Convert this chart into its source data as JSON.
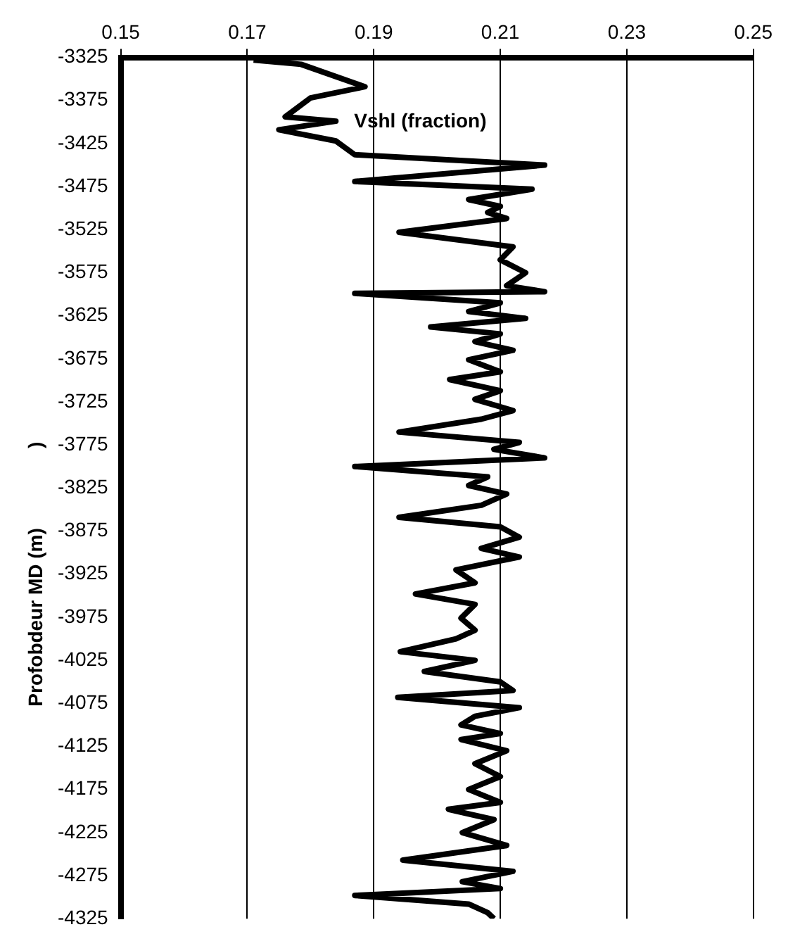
{
  "chart_data": {
    "type": "line",
    "title": "Vshl (fraction)",
    "ylabel": "Profobdeur MD (m)",
    "annotations": [
      ")"
    ],
    "xlim": [
      0.15,
      0.25
    ],
    "xticks": [
      0.15,
      0.17,
      0.19,
      0.21,
      0.23,
      0.25
    ],
    "ylim": [
      -4325,
      -3325
    ],
    "yticks": [
      -3325,
      -3375,
      -3425,
      -3475,
      -3525,
      -3575,
      -3625,
      -3675,
      -3725,
      -3775,
      -3825,
      -3875,
      -3925,
      -3975,
      -4025,
      -4075,
      -4125,
      -4175,
      -4225,
      -4275,
      -4325
    ],
    "grid": "x",
    "legend": false,
    "marker": "none",
    "line_style": "solid",
    "series": [
      {
        "color": "#000000",
        "x": [
          0.171,
          0.1785,
          0.1886,
          0.18,
          0.176,
          0.184,
          0.175,
          0.184,
          0.187,
          0.217,
          0.187,
          0.215,
          0.205,
          0.21,
          0.208,
          0.211,
          0.194,
          0.212,
          0.21,
          0.214,
          0.211,
          0.217,
          0.187,
          0.21,
          0.205,
          0.214,
          0.199,
          0.21,
          0.206,
          0.212,
          0.205,
          0.21,
          0.202,
          0.21,
          0.206,
          0.212,
          0.207,
          0.194,
          0.213,
          0.209,
          0.217,
          0.187,
          0.208,
          0.205,
          0.211,
          0.207,
          0.194,
          0.21,
          0.213,
          0.207,
          0.213,
          0.203,
          0.206,
          0.1966,
          0.206,
          0.2038,
          0.206,
          0.203,
          0.1942,
          0.206,
          0.198,
          0.21,
          0.212,
          0.1938,
          0.213,
          0.206,
          0.2038,
          0.21,
          0.2038,
          0.211,
          0.206,
          0.21,
          0.205,
          0.21,
          0.2018,
          0.209,
          0.204,
          0.211,
          0.1946,
          0.212,
          0.204,
          0.21,
          0.187,
          0.205,
          0.208,
          0.209
        ],
        "values": [
          -3328,
          -3333,
          -3359,
          -3372,
          -3394,
          -3399,
          -3409,
          -3422,
          -3438,
          -3450,
          -3469,
          -3478,
          -3490,
          -3498,
          -3505,
          -3512,
          -3528,
          -3545,
          -3560,
          -3575,
          -3590,
          -3597,
          -3599,
          -3610,
          -3620,
          -3628,
          -3638,
          -3646,
          -3655,
          -3665,
          -3676,
          -3690,
          -3699,
          -3712,
          -3722,
          -3735,
          -3745,
          -3760,
          -3772,
          -3780,
          -3790,
          -3800,
          -3812,
          -3822,
          -3832,
          -3845,
          -3859,
          -3870,
          -3882,
          -3895,
          -3905,
          -3920,
          -3935,
          -3948,
          -3960,
          -3976,
          -3990,
          -4000,
          -4015,
          -4025,
          -4038,
          -4050,
          -4060,
          -4068,
          -4080,
          -4090,
          -4100,
          -4110,
          -4117,
          -4130,
          -4145,
          -4160,
          -4175,
          -4190,
          -4198,
          -4210,
          -4225,
          -4240,
          -4257,
          -4270,
          -4282,
          -4290,
          -4298,
          -4308,
          -4318,
          -4325
        ]
      }
    ]
  }
}
